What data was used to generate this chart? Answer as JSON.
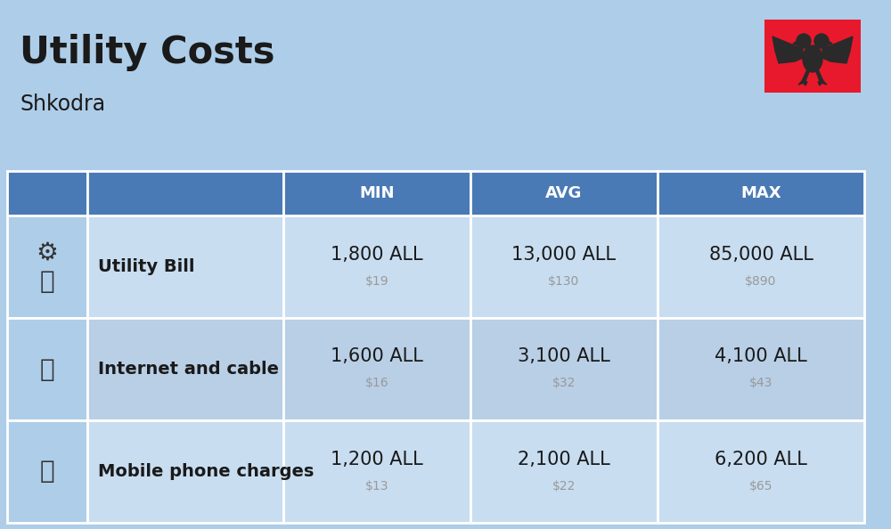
{
  "title": "Utility Costs",
  "subtitle": "Shkodra",
  "background_color": "#aecde8",
  "header_bg_color": "#4a7ab5",
  "header_text_color": "#ffffff",
  "row_bg_color_1": "#c8ddf0",
  "row_bg_color_2": "#b8cfe6",
  "table_border_color": "#ffffff",
  "icon_col_bg": "#aecde8",
  "columns": [
    "",
    "",
    "MIN",
    "AVG",
    "MAX"
  ],
  "rows": [
    {
      "label": "Utility Bill",
      "min_all": "1,800 ALL",
      "min_usd": "$19",
      "avg_all": "13,000 ALL",
      "avg_usd": "$130",
      "max_all": "85,000 ALL",
      "max_usd": "$890",
      "icon": "utility"
    },
    {
      "label": "Internet and cable",
      "min_all": "1,600 ALL",
      "min_usd": "$16",
      "avg_all": "3,100 ALL",
      "avg_usd": "$32",
      "max_all": "4,100 ALL",
      "max_usd": "$43",
      "icon": "internet"
    },
    {
      "label": "Mobile phone charges",
      "min_all": "1,200 ALL",
      "min_usd": "$13",
      "avg_all": "2,100 ALL",
      "avg_usd": "$22",
      "max_all": "6,200 ALL",
      "max_usd": "$65",
      "icon": "mobile"
    }
  ],
  "title_fontsize": 30,
  "subtitle_fontsize": 17,
  "header_fontsize": 13,
  "cell_main_fontsize": 15,
  "cell_sub_fontsize": 10,
  "label_fontsize": 14,
  "flag_color_red": "#e8192c",
  "flag_color_black": "#2a2a2a",
  "text_color": "#1a1a1a",
  "usd_color": "#999999"
}
